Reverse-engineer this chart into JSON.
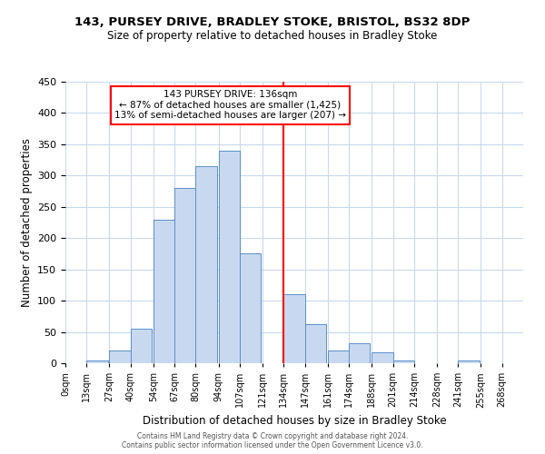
{
  "title": "143, PURSEY DRIVE, BRADLEY STOKE, BRISTOL, BS32 8DP",
  "subtitle": "Size of property relative to detached houses in Bradley Stoke",
  "xlabel": "Distribution of detached houses by size in Bradley Stoke",
  "ylabel": "Number of detached properties",
  "bin_labels": [
    "0sqm",
    "13sqm",
    "27sqm",
    "40sqm",
    "54sqm",
    "67sqm",
    "80sqm",
    "94sqm",
    "107sqm",
    "121sqm",
    "134sqm",
    "147sqm",
    "161sqm",
    "174sqm",
    "188sqm",
    "201sqm",
    "214sqm",
    "228sqm",
    "241sqm",
    "255sqm",
    "268sqm"
  ],
  "bin_edges": [
    0,
    13,
    27,
    40,
    54,
    67,
    80,
    94,
    107,
    121,
    134,
    147,
    161,
    174,
    188,
    201,
    214,
    228,
    241,
    255,
    268
  ],
  "bar_heights": [
    0,
    5,
    20,
    55,
    230,
    280,
    315,
    340,
    175,
    0,
    110,
    63,
    20,
    32,
    18,
    5,
    0,
    0,
    5,
    0,
    0
  ],
  "bar_color": "#c8d9ef",
  "bar_edgecolor": "#5b8fc9",
  "vline_x": 134,
  "vline_color": "red",
  "annotation_title": "143 PURSEY DRIVE: 136sqm",
  "annotation_line1": "← 87% of detached houses are smaller (1,425)",
  "annotation_line2": "13% of semi-detached houses are larger (207) →",
  "annotation_box_color": "white",
  "annotation_box_edgecolor": "red",
  "ylim": [
    0,
    450
  ],
  "background_color": "#ffffff",
  "grid_color": "#c8d9ef",
  "footer_line1": "Contains HM Land Registry data © Crown copyright and database right 2024.",
  "footer_line2": "Contains public sector information licensed under the Open Government Licence v3.0."
}
